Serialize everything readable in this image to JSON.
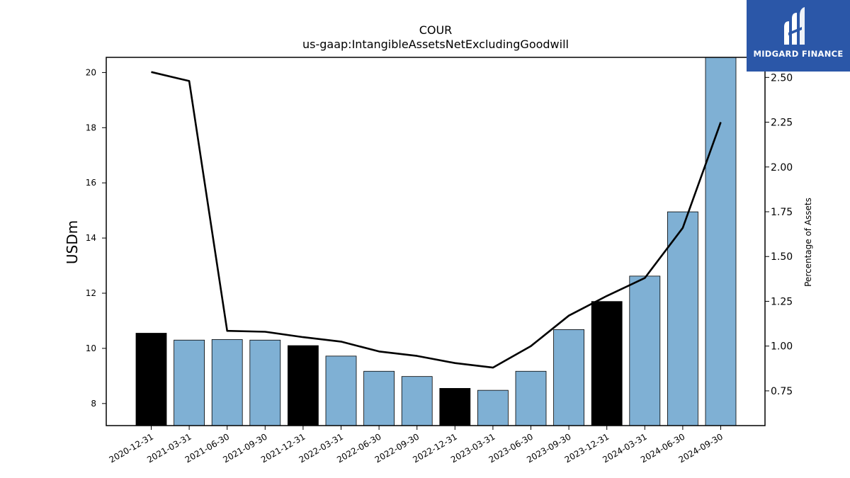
{
  "brand": {
    "name": "MIDGARD FINANCE"
  },
  "colors": {
    "bar_blue": "#7fb0d4",
    "bar_black": "#000000",
    "line": "#000000",
    "logo_bg": "#2b57a8"
  },
  "chart_data": {
    "type": "bar",
    "title": "COUR",
    "subtitle": "us-gaap:IntangibleAssetsNetExcludingGoodwill",
    "ylabel": "USDm",
    "ylabel_right": "Percentage of Assets",
    "categories": [
      "2020-12-31",
      "2021-03-31",
      "2021-06-30",
      "2021-09-30",
      "2021-12-31",
      "2022-03-31",
      "2022-06-30",
      "2022-09-30",
      "2022-12-31",
      "2023-03-31",
      "2023-06-30",
      "2023-09-30",
      "2023-12-31",
      "2024-03-31",
      "2024-06-30",
      "2024-09-30"
    ],
    "ylim": [
      7.2,
      20.55
    ],
    "yticks": [
      8,
      10,
      12,
      14,
      16,
      18,
      20
    ],
    "ylim_right": [
      0.556,
      2.612
    ],
    "yticks_right": [
      0.75,
      1.0,
      1.25,
      1.5,
      1.75,
      2.0,
      2.25,
      2.5
    ],
    "series": [
      {
        "kind": "bar",
        "axis": "left",
        "values": [
          10.55,
          10.3,
          10.32,
          10.3,
          10.1,
          9.72,
          9.17,
          8.98,
          8.55,
          8.48,
          9.17,
          10.68,
          11.7,
          12.62,
          14.95,
          20.6
        ],
        "year_end_highlight": [
          true,
          false,
          false,
          false,
          true,
          false,
          false,
          false,
          true,
          false,
          false,
          false,
          true,
          false,
          false,
          false
        ]
      },
      {
        "kind": "line",
        "axis": "right",
        "values": [
          2.53,
          2.48,
          1.085,
          1.08,
          1.05,
          1.025,
          0.97,
          0.945,
          0.905,
          0.88,
          1.0,
          1.17,
          1.28,
          1.38,
          1.66,
          2.25
        ]
      }
    ],
    "grid": false,
    "legend": "none"
  }
}
